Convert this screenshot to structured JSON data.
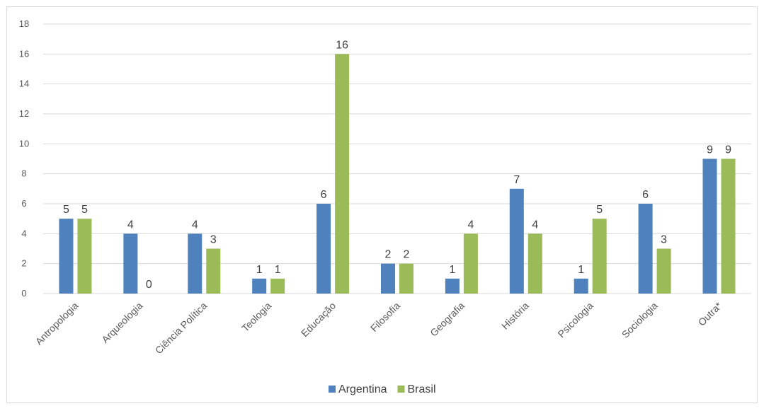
{
  "chart_data": {
    "type": "bar",
    "categories": [
      "Antropologia",
      "Arqueologia",
      "Ciência Política",
      "Teologia",
      "Educação",
      "Filosofia",
      "Geografia",
      "História",
      "Psicologia",
      "Sociologia",
      "Outra*"
    ],
    "series": [
      {
        "name": "Argentina",
        "color": "#4f81bd",
        "values": [
          5,
          4,
          4,
          1,
          6,
          2,
          1,
          7,
          1,
          6,
          9
        ]
      },
      {
        "name": "Brasil",
        "color": "#9bbb59",
        "values": [
          5,
          0,
          3,
          1,
          16,
          2,
          4,
          4,
          5,
          3,
          9
        ]
      }
    ],
    "ylim": [
      0,
      18
    ],
    "yticks": [
      0,
      2,
      4,
      6,
      8,
      10,
      12,
      14,
      16,
      18
    ],
    "grid": true,
    "legend": "bottom",
    "data_labels": true,
    "gridline_color": "#d9d9d9"
  }
}
